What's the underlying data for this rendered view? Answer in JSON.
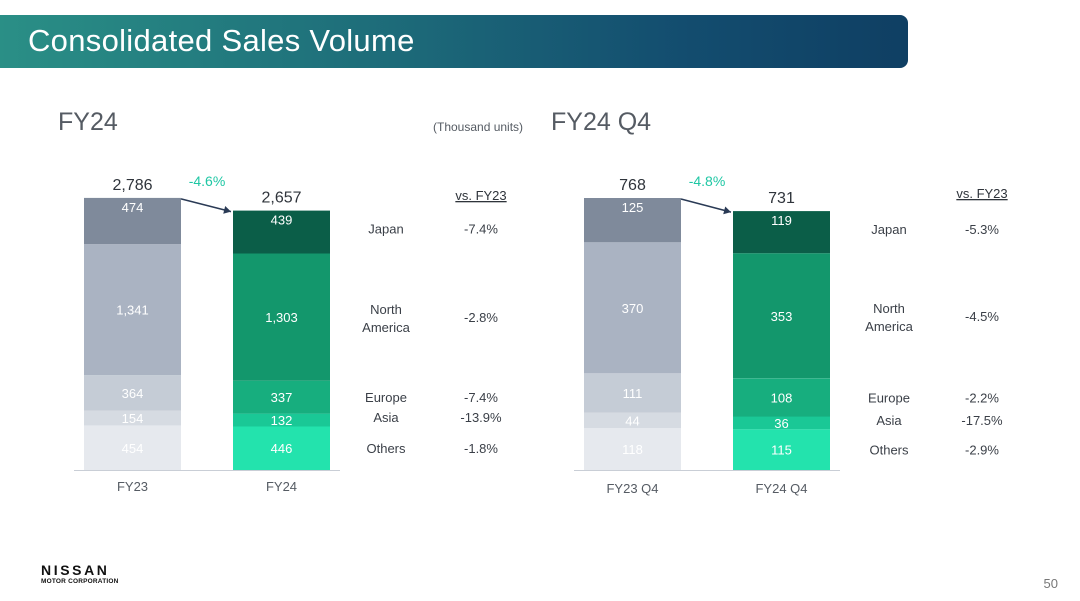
{
  "header": {
    "title": "Consolidated Sales Volume"
  },
  "units_note": "(Thousand units)",
  "footer": {
    "logo_line1": "NISSAN",
    "logo_line2": "MOTOR CORPORATION",
    "page_number": "50"
  },
  "colors": {
    "prior_segments": [
      "#7f8a9b",
      "#aab3c2",
      "#c5ccd6",
      "#d6dbe2",
      "#e6e9ee"
    ],
    "current_segments": [
      "#0b5e48",
      "#13976c",
      "#17ae7e",
      "#1ac896",
      "#23e3ad"
    ],
    "change_label": "#1fc7a4"
  },
  "chart_data": [
    {
      "type": "bar",
      "stacked": true,
      "title": "FY24",
      "categories": [
        "FY23",
        "FY24"
      ],
      "regions": [
        "Japan",
        "North America",
        "Europe",
        "Asia",
        "Others"
      ],
      "series": [
        {
          "name": "Japan",
          "values": [
            474,
            439
          ]
        },
        {
          "name": "North America",
          "values": [
            1341,
            1303
          ]
        },
        {
          "name": "Europe",
          "values": [
            364,
            337
          ]
        },
        {
          "name": "Asia",
          "values": [
            154,
            132
          ]
        },
        {
          "name": "Others",
          "values": [
            454,
            446
          ]
        }
      ],
      "totals": [
        2786,
        2657
      ],
      "value_labels": {
        "prior": [
          "474",
          "1,341",
          "364",
          "154",
          "454"
        ],
        "current": [
          "439",
          "1,303",
          "337",
          "132",
          "446"
        ]
      },
      "total_labels": [
        "2,786",
        "2,657"
      ],
      "change_total": "-4.6%",
      "vs_header": "vs. FY23",
      "vs_values": [
        "-7.4%",
        "-2.8%",
        "-7.4%",
        "-13.9%",
        "-1.8%"
      ]
    },
    {
      "type": "bar",
      "stacked": true,
      "title": "FY24 Q4",
      "categories": [
        "FY23 Q4",
        "FY24 Q4"
      ],
      "regions": [
        "Japan",
        "North America",
        "Europe",
        "Asia",
        "Others"
      ],
      "series": [
        {
          "name": "Japan",
          "values": [
            125,
            119
          ]
        },
        {
          "name": "North America",
          "values": [
            370,
            353
          ]
        },
        {
          "name": "Europe",
          "values": [
            111,
            108
          ]
        },
        {
          "name": "Asia",
          "values": [
            44,
            36
          ]
        },
        {
          "name": "Others",
          "values": [
            118,
            115
          ]
        }
      ],
      "totals": [
        768,
        731
      ],
      "value_labels": {
        "prior": [
          "125",
          "370",
          "111",
          "44",
          "118"
        ],
        "current": [
          "119",
          "353",
          "108",
          "36",
          "115"
        ]
      },
      "total_labels": [
        "768",
        "731"
      ],
      "change_total": "-4.8%",
      "vs_header": "vs. FY23",
      "vs_values": [
        "-5.3%",
        "-4.5%",
        "-2.2%",
        "-17.5%",
        "-2.9%"
      ]
    }
  ]
}
